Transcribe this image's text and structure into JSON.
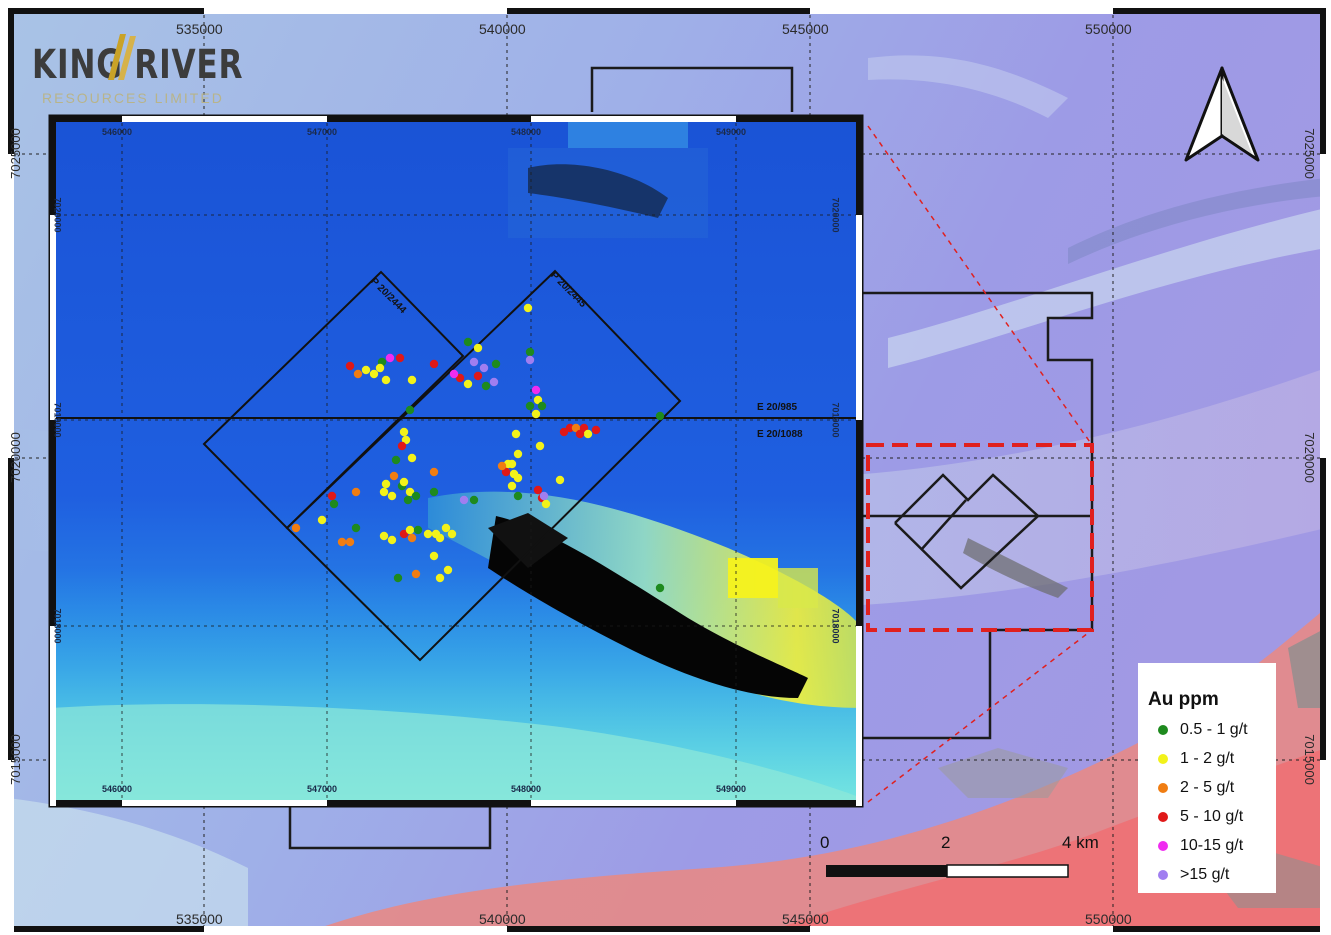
{
  "logo": {
    "text": "KING RIVER",
    "subtext": "RESOURCES LIMITED",
    "gold_color": "#c9a227"
  },
  "main_map": {
    "x_ticks": [
      "535000",
      "540000",
      "545000",
      "550000"
    ],
    "y_ticks": [
      "7025000",
      "7020000",
      "7015000"
    ]
  },
  "inset_map": {
    "x_ticks": [
      "546000",
      "547000",
      "548000",
      "549000"
    ],
    "y_ticks": [
      "7020000",
      "7019000",
      "7018000"
    ],
    "tenements": [
      "P 20/2444",
      "P 20/2445",
      "E 20/985",
      "E 20/1088"
    ]
  },
  "scale_bar": {
    "labels": [
      "0",
      "2",
      "4 km"
    ]
  },
  "legend": {
    "title": "Au ppm",
    "items": [
      {
        "label": "0.5 - 1 g/t",
        "color": "#1e8a1e"
      },
      {
        "label": "1 - 2 g/t",
        "color": "#f2f21a"
      },
      {
        "label": "2 - 5 g/t",
        "color": "#f07d12"
      },
      {
        "label": "5 - 10 g/t",
        "color": "#e01818"
      },
      {
        "label": "10-15 g/t",
        "color": "#f02cf0"
      },
      {
        "label": ">15 g/t",
        "color": "#a07ef0"
      }
    ]
  },
  "north_arrow": {
    "icon": "north-arrow-icon"
  }
}
